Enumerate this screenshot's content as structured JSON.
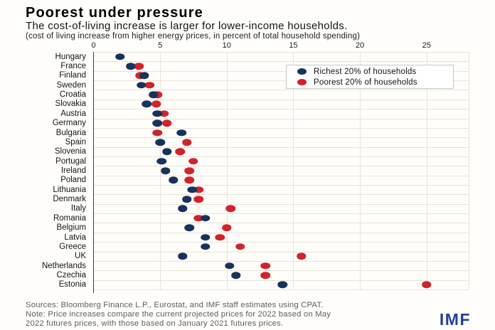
{
  "figure": {
    "title": "Poorest under pressure",
    "subtitle": "The cost-of-living increase is larger for lower-income households.",
    "unit_note": "(cost of living increase from higher energy prices, in percent of total household spending)"
  },
  "chart_data": {
    "type": "scatter",
    "variant": "horizontal_dot_plot",
    "title": "Poorest under pressure",
    "xlabel": "cost of living increase from higher energy prices, in percent of total household spending",
    "xlim": [
      0,
      28
    ],
    "xticks": [
      0,
      5,
      10,
      15,
      20,
      25
    ],
    "grid": true,
    "legend_position": "top-right",
    "categories": [
      "Hungary",
      "France",
      "Finland",
      "Sweden",
      "Croatia",
      "Slovakia",
      "Austria",
      "Germany",
      "Bulgaria",
      "Spain",
      "Slovenia",
      "Portugal",
      "Ireland",
      "Poland",
      "Lithuania",
      "Denmark",
      "Italy",
      "Romania",
      "Belgium",
      "Latvia",
      "Greece",
      "UK",
      "Netherlands",
      "Czechia",
      "Estonia"
    ],
    "series": [
      {
        "name": "Richest 20% of households",
        "color": "#16335e",
        "values": [
          2.0,
          2.8,
          3.8,
          3.6,
          4.5,
          4.0,
          4.8,
          4.8,
          6.6,
          5.0,
          5.5,
          5.1,
          5.4,
          6.0,
          7.4,
          7.0,
          6.7,
          8.4,
          7.2,
          8.4,
          8.4,
          6.7,
          10.2,
          10.7,
          14.2
        ]
      },
      {
        "name": "Poorest 20% of households",
        "color": "#d2232a",
        "values": [
          2.0,
          3.4,
          3.5,
          4.2,
          4.8,
          4.7,
          5.3,
          5.5,
          4.8,
          7.0,
          6.5,
          7.5,
          7.2,
          7.2,
          7.9,
          7.9,
          10.3,
          7.9,
          10.0,
          9.5,
          11.0,
          15.6,
          12.9,
          12.9,
          25.0
        ]
      }
    ]
  },
  "footer": {
    "sources": "Sources: Bloomberg Finance L.P., Eurostat, and IMF staff estimates using CPAT.",
    "note_line1": "Note: Price increases compare the current projected prices for 2022 based on May",
    "note_line2": "2022 futures prices, with those based on January 2021 futures prices.",
    "logo_text": "IMF"
  },
  "colors": {
    "richest": "#16335e",
    "poorest": "#d2232a",
    "gridline": "#eae3d5",
    "axis": "#3d3d3d",
    "footer_text": "#5d5d5d",
    "logo_blue": "#24409a",
    "background": "#fffefa"
  }
}
